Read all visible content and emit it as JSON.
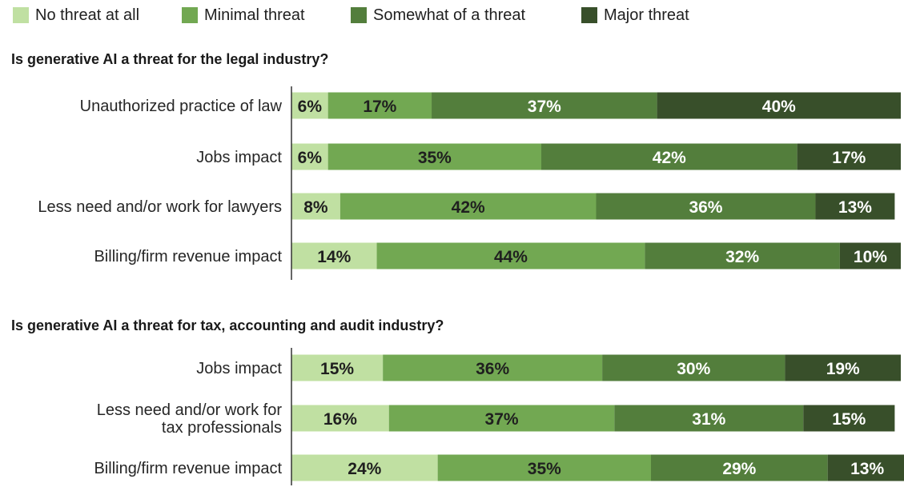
{
  "legend": [
    {
      "label": "No threat at all",
      "color": "#c0e0a2"
    },
    {
      "label": "Minimal threat",
      "color": "#72a852"
    },
    {
      "label": "Somewhat of a threat",
      "color": "#537e3c"
    },
    {
      "label": "Major threat",
      "color": "#384f2a"
    }
  ],
  "chart_data": [
    {
      "type": "bar",
      "orientation": "horizontal",
      "stacked": true,
      "title": "Is generative AI a threat for the legal industry?",
      "categories": [
        [
          "Unauthorized practice of law"
        ],
        [
          "Jobs impact"
        ],
        [
          "Less need and/or work for lawyers"
        ],
        [
          "Billing/firm revenue impact"
        ]
      ],
      "series": [
        {
          "name": "No threat at all",
          "values": [
            6,
            6,
            8,
            14
          ]
        },
        {
          "name": "Minimal threat",
          "values": [
            17,
            35,
            42,
            44
          ]
        },
        {
          "name": "Somewhat of a threat",
          "values": [
            37,
            42,
            36,
            32
          ]
        },
        {
          "name": "Major threat",
          "values": [
            40,
            17,
            13,
            10
          ]
        }
      ],
      "unit": "%",
      "xlim": [
        0,
        100
      ]
    },
    {
      "type": "bar",
      "orientation": "horizontal",
      "stacked": true,
      "title": "Is generative AI a threat for tax, accounting and audit industry?",
      "categories": [
        [
          "Jobs impact"
        ],
        [
          "Less need and/or work for",
          "tax professionals"
        ],
        [
          "Billing/firm revenue impact"
        ]
      ],
      "series": [
        {
          "name": "No threat at all",
          "values": [
            15,
            16,
            24
          ]
        },
        {
          "name": "Minimal threat",
          "values": [
            36,
            37,
            35
          ]
        },
        {
          "name": "Somewhat of a threat",
          "values": [
            30,
            31,
            29
          ]
        },
        {
          "name": "Major threat",
          "values": [
            19,
            15,
            13
          ]
        }
      ],
      "unit": "%",
      "xlim": [
        0,
        100
      ]
    }
  ]
}
